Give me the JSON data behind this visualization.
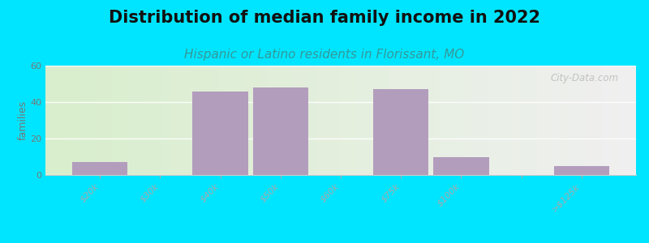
{
  "title": "Distribution of median family income in 2022",
  "subtitle": "Hispanic or Latino residents in Florissant, MO",
  "ylabel": "families",
  "categories": [
    "$20k",
    "$30k",
    "$40k",
    "$50k",
    "$60k",
    "$75k",
    "$100k",
    "",
    ">$125k"
  ],
  "values": [
    7,
    0,
    46,
    48,
    0,
    47,
    10,
    0,
    5
  ],
  "bar_color": "#b39dbd",
  "background_outer": "#00e5ff",
  "bg_left_color": "#d8eecc",
  "bg_right_color": "#f0f0f0",
  "ylim": [
    0,
    60
  ],
  "yticks": [
    0,
    20,
    40,
    60
  ],
  "title_fontsize": 15,
  "subtitle_fontsize": 11,
  "ylabel_fontsize": 9,
  "tick_fontsize": 8,
  "watermark": "City-Data.com"
}
